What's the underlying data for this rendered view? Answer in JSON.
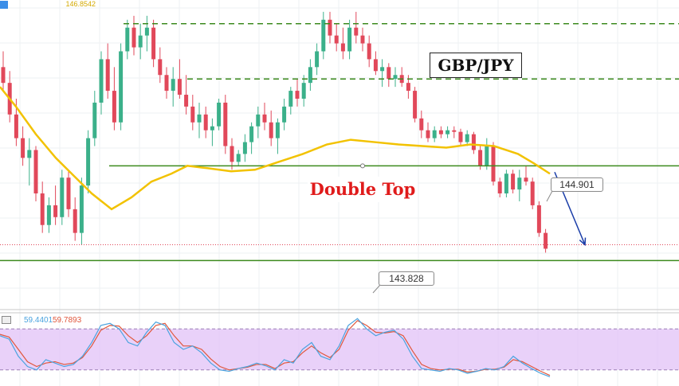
{
  "chart_data": {
    "type": "candlestick",
    "title": "GBP/JPY",
    "annotation": "Double Top",
    "price_tag_top": "146.8542",
    "level_labels": {
      "resistance": "144.901",
      "support": "143.828"
    },
    "y_range": [
      143.3,
      147.05
    ],
    "levels": {
      "top_dashed": 146.75,
      "mid_dashed": 146.05,
      "neckline": 144.95,
      "lower_solid": 143.75,
      "dotted_last": 143.95
    },
    "candles": [
      [
        146.2,
        146.4,
        145.9,
        146.0
      ],
      [
        146.0,
        146.15,
        145.5,
        145.6
      ],
      [
        145.6,
        145.8,
        145.2,
        145.3
      ],
      [
        145.3,
        145.45,
        144.95,
        145.05
      ],
      [
        145.05,
        145.3,
        144.7,
        145.15
      ],
      [
        145.15,
        145.2,
        144.5,
        144.6
      ],
      [
        144.6,
        144.75,
        144.1,
        144.2
      ],
      [
        144.2,
        144.55,
        144.1,
        144.45
      ],
      [
        144.45,
        144.7,
        144.2,
        144.3
      ],
      [
        144.3,
        144.9,
        144.2,
        144.8
      ],
      [
        144.8,
        144.9,
        144.3,
        144.4
      ],
      [
        144.4,
        144.55,
        144.0,
        144.1
      ],
      [
        144.1,
        144.8,
        143.95,
        144.7
      ],
      [
        144.7,
        145.4,
        144.6,
        145.3
      ],
      [
        145.3,
        145.9,
        145.2,
        145.75
      ],
      [
        145.75,
        146.4,
        145.6,
        146.3
      ],
      [
        146.3,
        146.5,
        145.8,
        145.9
      ],
      [
        145.9,
        146.2,
        145.4,
        145.5
      ],
      [
        145.5,
        146.5,
        145.4,
        146.4
      ],
      [
        146.4,
        146.8,
        146.3,
        146.7
      ],
      [
        146.7,
        146.85,
        146.35,
        146.45
      ],
      [
        146.45,
        146.75,
        146.3,
        146.6
      ],
      [
        146.6,
        146.85,
        146.4,
        146.7
      ],
      [
        146.7,
        146.8,
        146.2,
        146.3
      ],
      [
        146.3,
        146.45,
        146.0,
        146.1
      ],
      [
        146.1,
        146.2,
        145.8,
        145.9
      ],
      [
        145.9,
        146.2,
        145.7,
        146.05
      ],
      [
        146.05,
        146.3,
        145.8,
        145.85
      ],
      [
        145.85,
        146.1,
        145.6,
        145.7
      ],
      [
        145.7,
        145.85,
        145.4,
        145.5
      ],
      [
        145.5,
        145.75,
        145.3,
        145.6
      ],
      [
        145.6,
        145.7,
        145.3,
        145.4
      ],
      [
        145.4,
        145.55,
        145.2,
        145.45
      ],
      [
        145.45,
        145.8,
        145.4,
        145.75
      ],
      [
        145.75,
        145.85,
        145.1,
        145.2
      ],
      [
        145.2,
        145.3,
        144.9,
        145.0
      ],
      [
        145.0,
        145.15,
        144.95,
        145.1
      ],
      [
        145.1,
        145.35,
        145.0,
        145.25
      ],
      [
        145.25,
        145.5,
        145.1,
        145.45
      ],
      [
        145.45,
        145.7,
        145.3,
        145.6
      ],
      [
        145.6,
        145.75,
        145.4,
        145.5
      ],
      [
        145.5,
        145.65,
        145.2,
        145.3
      ],
      [
        145.3,
        145.55,
        145.1,
        145.5
      ],
      [
        145.5,
        145.8,
        145.4,
        145.7
      ],
      [
        145.7,
        145.95,
        145.6,
        145.9
      ],
      [
        145.9,
        146.05,
        145.7,
        145.8
      ],
      [
        145.8,
        146.1,
        145.7,
        146.0
      ],
      [
        146.0,
        146.3,
        145.9,
        146.2
      ],
      [
        146.2,
        146.5,
        146.1,
        146.4
      ],
      [
        146.4,
        146.9,
        146.3,
        146.8
      ],
      [
        146.8,
        146.9,
        146.5,
        146.6
      ],
      [
        146.6,
        146.75,
        146.4,
        146.5
      ],
      [
        146.5,
        146.7,
        146.3,
        146.4
      ],
      [
        146.4,
        146.8,
        146.3,
        146.7
      ],
      [
        146.7,
        146.9,
        146.5,
        146.6
      ],
      [
        146.6,
        146.7,
        146.4,
        146.5
      ],
      [
        146.5,
        146.6,
        146.2,
        146.3
      ],
      [
        146.3,
        146.4,
        146.1,
        146.15
      ],
      [
        146.15,
        146.3,
        145.95,
        146.2
      ],
      [
        146.2,
        146.25,
        145.95,
        146.05
      ],
      [
        146.05,
        146.2,
        145.95,
        146.1
      ],
      [
        146.1,
        146.2,
        145.95,
        146.0
      ],
      [
        146.0,
        146.1,
        145.8,
        145.9
      ],
      [
        145.9,
        145.95,
        145.5,
        145.55
      ],
      [
        145.55,
        145.65,
        145.3,
        145.4
      ],
      [
        145.4,
        145.5,
        145.25,
        145.3
      ],
      [
        145.3,
        145.45,
        145.25,
        145.4
      ],
      [
        145.4,
        145.45,
        145.3,
        145.35
      ],
      [
        145.35,
        145.45,
        145.3,
        145.4
      ],
      [
        145.4,
        145.45,
        145.3,
        145.38
      ],
      [
        145.38,
        145.42,
        145.2,
        145.25
      ],
      [
        145.25,
        145.4,
        145.2,
        145.35
      ],
      [
        145.35,
        145.38,
        145.1,
        145.15
      ],
      [
        145.15,
        145.2,
        144.9,
        144.95
      ],
      [
        144.95,
        145.3,
        144.9,
        145.2
      ],
      [
        145.2,
        145.25,
        144.7,
        144.75
      ],
      [
        144.75,
        144.8,
        144.55,
        144.6
      ],
      [
        144.6,
        144.9,
        144.55,
        144.85
      ],
      [
        144.85,
        144.9,
        144.6,
        144.65
      ],
      [
        144.65,
        144.9,
        144.5,
        144.8
      ],
      [
        144.8,
        144.95,
        144.7,
        144.75
      ],
      [
        144.75,
        144.8,
        144.4,
        144.45
      ],
      [
        144.45,
        144.5,
        144.05,
        144.1
      ],
      [
        144.1,
        144.15,
        143.85,
        143.9
      ]
    ],
    "moving_average": [
      [
        0,
        145.95
      ],
      [
        20,
        145.7
      ],
      [
        45,
        145.35
      ],
      [
        70,
        145.05
      ],
      [
        95,
        144.8
      ],
      [
        115,
        144.6
      ],
      [
        140,
        144.4
      ],
      [
        165,
        144.55
      ],
      [
        190,
        144.75
      ],
      [
        215,
        144.85
      ],
      [
        235,
        144.95
      ],
      [
        260,
        144.92
      ],
      [
        290,
        144.88
      ],
      [
        320,
        144.9
      ],
      [
        350,
        145.0
      ],
      [
        380,
        145.1
      ],
      [
        410,
        145.22
      ],
      [
        440,
        145.28
      ],
      [
        470,
        145.25
      ],
      [
        500,
        145.22
      ],
      [
        530,
        145.2
      ],
      [
        560,
        145.18
      ],
      [
        590,
        145.22
      ],
      [
        620,
        145.2
      ],
      [
        650,
        145.1
      ],
      [
        670,
        144.98
      ],
      [
        690,
        144.85
      ]
    ],
    "stochastic": {
      "k_label": "59.4401",
      "d_label": "59.7893",
      "k_color": "#4aa3df",
      "d_color": "#e0573c",
      "upper": 80,
      "lower": 20,
      "k": [
        70,
        65,
        40,
        25,
        20,
        35,
        30,
        25,
        28,
        40,
        60,
        85,
        88,
        80,
        60,
        55,
        75,
        90,
        85,
        60,
        50,
        55,
        45,
        30,
        20,
        18,
        22,
        25,
        30,
        26,
        20,
        35,
        30,
        50,
        60,
        40,
        35,
        55,
        85,
        95,
        80,
        70,
        75,
        78,
        65,
        40,
        22,
        20,
        18,
        22,
        20,
        15,
        18,
        22,
        20,
        25,
        40,
        30,
        22,
        15,
        10
      ],
      "d": [
        72,
        68,
        50,
        32,
        25,
        30,
        32,
        28,
        30,
        38,
        55,
        78,
        85,
        84,
        70,
        60,
        70,
        85,
        88,
        70,
        55,
        55,
        50,
        36,
        25,
        20,
        22,
        24,
        28,
        28,
        22,
        30,
        32,
        45,
        55,
        45,
        38,
        50,
        78,
        92,
        85,
        75,
        74,
        76,
        70,
        48,
        28,
        22,
        20,
        21,
        21,
        17,
        18,
        21,
        21,
        24,
        35,
        32,
        25,
        18,
        12
      ]
    },
    "arrow": {
      "from": [
        696,
        144.87
      ],
      "to": [
        734,
        143.95
      ]
    },
    "colors": {
      "bull": "#3bb08a",
      "bear": "#e1485a",
      "ma": "#f2c200",
      "level": "#3c8a1e",
      "arrow": "#1a3da8",
      "stoch_band": "#e2c2f7"
    }
  }
}
